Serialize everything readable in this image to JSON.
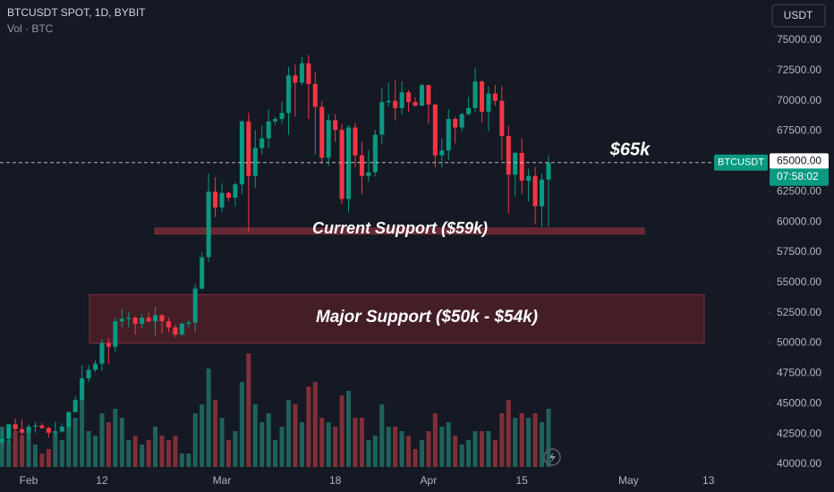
{
  "chart_data": {
    "type": "candlestick",
    "title": "BTCUSDT SPOT, 1D, BYBIT",
    "subtitle": "Vol · BTC",
    "currency": "USDT",
    "symbol": "BTCUSDT",
    "countdown": "07:58:02",
    "last_price": 64898.99,
    "price_marker": {
      "value": 65000,
      "label": "65000.00"
    },
    "up_color": "#089981",
    "down_color": "#f23645",
    "volume_up_color": "#1f625b",
    "volume_down_color": "#7f2f38",
    "x": [
      28,
      29,
      30,
      31,
      32,
      33,
      34,
      35,
      36,
      37,
      38,
      39,
      40,
      41,
      42,
      43,
      44,
      45,
      46,
      47,
      48,
      49,
      50,
      51,
      52,
      53,
      54,
      55,
      56,
      57,
      58,
      59,
      60,
      61,
      62,
      63,
      64,
      65,
      66,
      67,
      68,
      69,
      70,
      71,
      72,
      73,
      74,
      75,
      76,
      77,
      78,
      79,
      80,
      81,
      82,
      83,
      84,
      85,
      86,
      87,
      88,
      89,
      90,
      91,
      92,
      93,
      94,
      95,
      96,
      97,
      98,
      99,
      100,
      101,
      102,
      103,
      104,
      105,
      106,
      107,
      108,
      109,
      110
    ],
    "open": [
      41800,
      42100,
      43300,
      42900,
      42600,
      43100,
      43200,
      43000,
      42600,
      42700,
      43100,
      44300,
      45300,
      47100,
      47800,
      48300,
      50000,
      49700,
      51800,
      52000,
      52100,
      51600,
      52100,
      51800,
      52300,
      51800,
      51300,
      50700,
      51600,
      51700,
      54500,
      57100,
      62500,
      61200,
      62400,
      62000,
      63100,
      68300,
      63800,
      66100,
      66900,
      68300,
      68500,
      69000,
      72100,
      71500,
      73100,
      71400,
      69500,
      65300,
      68400,
      67600,
      61900,
      67800,
      65500,
      63800,
      64100,
      67200,
      69900,
      70000,
      69400,
      70700,
      69900,
      69600,
      71300,
      69700,
      65500,
      65900,
      68500,
      67800,
      68900,
      69400,
      71600,
      69100,
      70600,
      70000,
      67100,
      63900,
      65700,
      63400,
      63800,
      61300,
      63500
    ],
    "high": [
      42800,
      43300,
      43800,
      43700,
      43300,
      43500,
      43400,
      43100,
      43500,
      43400,
      44400,
      45600,
      48200,
      48200,
      48600,
      50300,
      50400,
      52100,
      52800,
      52600,
      52200,
      52400,
      52500,
      53000,
      52400,
      52100,
      51500,
      51700,
      51900,
      54900,
      57500,
      64000,
      63700,
      63200,
      62500,
      63300,
      68400,
      69000,
      67600,
      68000,
      69300,
      68700,
      69900,
      72800,
      73000,
      73600,
      73800,
      72400,
      70000,
      68900,
      68900,
      68100,
      68000,
      68200,
      66600,
      65900,
      67600,
      71100,
      71500,
      71700,
      71600,
      70900,
      70300,
      71400,
      71300,
      69700,
      66900,
      69300,
      68700,
      69000,
      70300,
      72700,
      71700,
      71200,
      71300,
      71200,
      67900,
      65800,
      66900,
      64400,
      64500,
      64000,
      65500
    ],
    "low": [
      41600,
      41800,
      42700,
      42300,
      41900,
      42600,
      42900,
      42200,
      42300,
      42600,
      42800,
      44300,
      45300,
      46800,
      47600,
      47700,
      48300,
      49300,
      51300,
      51300,
      50700,
      51200,
      51700,
      50600,
      50800,
      50900,
      50500,
      50600,
      51300,
      50900,
      54400,
      56700,
      60400,
      60800,
      61700,
      61300,
      62300,
      59200,
      62800,
      65600,
      66100,
      68000,
      68100,
      67200,
      68700,
      71300,
      68500,
      65600,
      64800,
      64600,
      66600,
      61500,
      60800,
      64500,
      62300,
      63300,
      63800,
      66400,
      69500,
      68400,
      68900,
      69100,
      69500,
      69600,
      68100,
      64500,
      64500,
      65100,
      66500,
      67500,
      68800,
      69100,
      68200,
      67500,
      69600,
      65100,
      60700,
      62100,
      62300,
      61700,
      59800,
      59600,
      59600
    ],
    "close": [
      42100,
      43300,
      42900,
      42600,
      43100,
      43200,
      43000,
      42600,
      42700,
      43100,
      44300,
      45300,
      47100,
      47800,
      48300,
      50000,
      49700,
      51800,
      52000,
      52100,
      51600,
      52100,
      51800,
      52300,
      51800,
      51300,
      50700,
      51600,
      51700,
      54500,
      57100,
      62500,
      61200,
      62400,
      62000,
      63100,
      68300,
      63800,
      66100,
      66900,
      68300,
      68500,
      69000,
      72100,
      71500,
      73100,
      71400,
      69500,
      65300,
      68400,
      67600,
      61900,
      67800,
      65500,
      63800,
      64100,
      67200,
      69900,
      70000,
      69400,
      70700,
      69900,
      69600,
      71300,
      69700,
      65500,
      65900,
      68500,
      67800,
      68900,
      69400,
      71600,
      69100,
      70600,
      70000,
      67100,
      63900,
      65700,
      63400,
      63800,
      61300,
      63500,
      64898.99
    ],
    "volume": [
      45,
      30,
      40,
      35,
      42,
      25,
      15,
      20,
      40,
      30,
      50,
      55,
      75,
      40,
      35,
      60,
      50,
      65,
      55,
      30,
      35,
      25,
      30,
      45,
      35,
      30,
      35,
      15,
      15,
      60,
      70,
      110,
      75,
      55,
      30,
      40,
      95,
      127,
      70,
      50,
      60,
      30,
      45,
      75,
      70,
      50,
      90,
      95,
      55,
      50,
      45,
      80,
      85,
      55,
      55,
      30,
      35,
      70,
      45,
      45,
      40,
      35,
      20,
      30,
      40,
      60,
      45,
      50,
      35,
      25,
      30,
      40,
      40,
      40,
      30,
      60,
      75,
      55,
      60,
      55,
      60,
      50,
      65
    ],
    "xlim": [
      27.7,
      142.9
    ],
    "xticks": [
      {
        "value": 32,
        "label": "Feb"
      },
      {
        "value": 43,
        "label": "12"
      },
      {
        "value": 61,
        "label": "Mar"
      },
      {
        "value": 78,
        "label": "18"
      },
      {
        "value": 92,
        "label": "Apr"
      },
      {
        "value": 106,
        "label": "15"
      },
      {
        "value": 122,
        "label": "May"
      },
      {
        "value": 134,
        "label": "13"
      }
    ],
    "ylim": [
      40000,
      75000
    ],
    "yticks": [
      {
        "value": 75000,
        "label": "75000.00"
      },
      {
        "value": 72500,
        "label": "72500.00"
      },
      {
        "value": 70000,
        "label": "70000.00"
      },
      {
        "value": 67500,
        "label": "67500.00"
      },
      {
        "value": 62500,
        "label": "62500.00"
      },
      {
        "value": 60000,
        "label": "60000.00"
      },
      {
        "value": 57500,
        "label": "57500.00"
      },
      {
        "value": 55000,
        "label": "55000.00"
      },
      {
        "value": 52500,
        "label": "52500.00"
      },
      {
        "value": 50000,
        "label": "50000.00"
      },
      {
        "value": 47500,
        "label": "47500.00"
      },
      {
        "value": 45000,
        "label": "45000.00"
      },
      {
        "value": 42500,
        "label": "42500.00"
      },
      {
        "value": 40000,
        "label": "40000.00"
      }
    ],
    "annotations": [
      {
        "text": "$65k"
      },
      {
        "text": "Current Support ($59k)",
        "low": 59000,
        "high": 59500
      },
      {
        "text": "Major Support ($50k - $54k)",
        "low": 50000,
        "high": 54000
      }
    ]
  }
}
